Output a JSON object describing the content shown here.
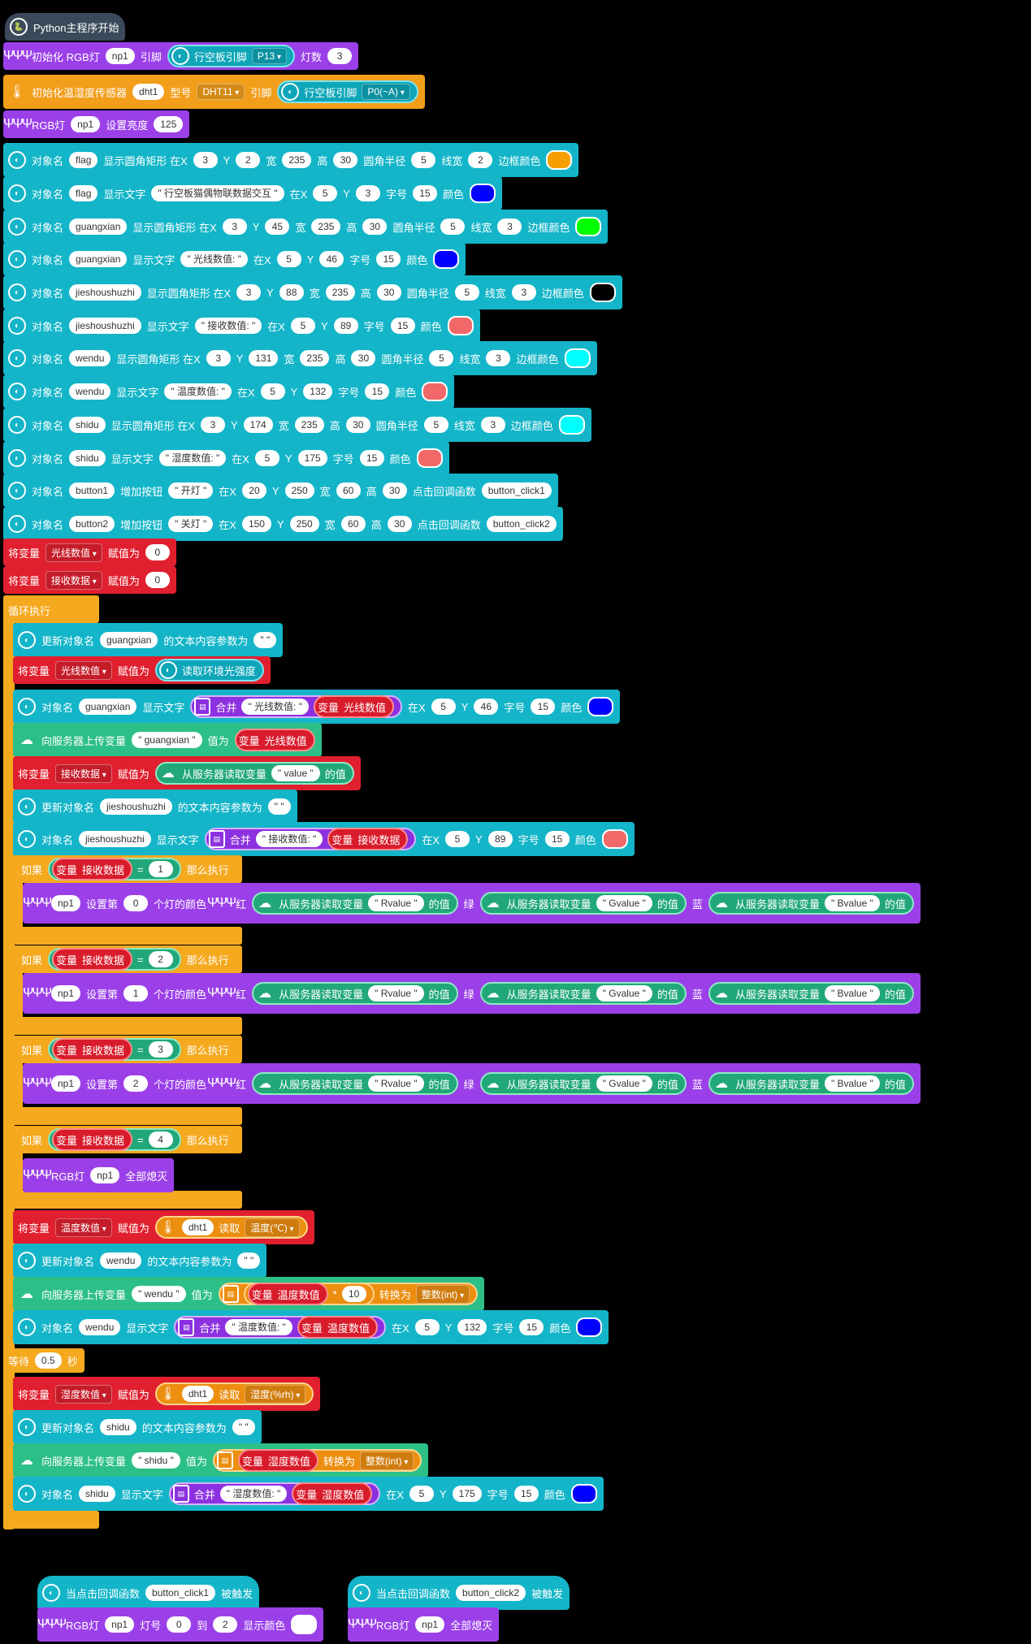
{
  "hat_main": {
    "label": "Python主程序开始"
  },
  "init_rgb": {
    "label": "初始化 RGB灯",
    "var": "np1",
    "pin_label": "引脚",
    "board_label": "行空板引脚",
    "pin": "P13",
    "count_label": "灯数",
    "count": "3"
  },
  "init_dht": {
    "label": "初始化温湿度传感器",
    "var": "dht1",
    "type_label": "型号",
    "type": "DHT11",
    "pin_label": "引脚",
    "board_label": "行空板引脚",
    "pin": "P0(~A)"
  },
  "rgb_bright": {
    "label": "RGB灯",
    "var": "np1",
    "set_label": "设置亮度",
    "value": "125"
  },
  "objects": [
    {
      "pre": "对象名",
      "name": "flag",
      "action": "显示圆角矩形 在X",
      "x": "3",
      "y": "2",
      "w": "235",
      "h": "30",
      "r": "5",
      "lw": "2",
      "colorlabel": "边框颜色",
      "color": "#f5a000",
      "kind": "rect"
    },
    {
      "pre": "对象名",
      "name": "flag",
      "action": "显示文字",
      "text": "\" 行空板猫偶物联数据交互 \"",
      "x": "5",
      "y": "3",
      "size": "15",
      "colorlabel": "颜色",
      "color": "#0000ff",
      "kind": "text"
    },
    {
      "pre": "对象名",
      "name": "guangxian",
      "action": "显示圆角矩形 在X",
      "x": "3",
      "y": "45",
      "w": "235",
      "h": "30",
      "r": "5",
      "lw": "3",
      "colorlabel": "边框颜色",
      "color": "#00ff00",
      "kind": "rect"
    },
    {
      "pre": "对象名",
      "name": "guangxian",
      "action": "显示文字",
      "text": "\" 光线数值: \"",
      "x": "5",
      "y": "46",
      "size": "15",
      "colorlabel": "颜色",
      "color": "#0000ff",
      "kind": "text"
    },
    {
      "pre": "对象名",
      "name": "jieshoushuzhi",
      "action": "显示圆角矩形 在X",
      "x": "3",
      "y": "88",
      "w": "235",
      "h": "30",
      "r": "5",
      "lw": "3",
      "colorlabel": "边框颜色",
      "color": "#000000",
      "kind": "rect"
    },
    {
      "pre": "对象名",
      "name": "jieshoushuzhi",
      "action": "显示文字",
      "text": "\" 接收数值: \"",
      "x": "5",
      "y": "89",
      "size": "15",
      "colorlabel": "颜色",
      "color": "#f06868",
      "kind": "text"
    },
    {
      "pre": "对象名",
      "name": "wendu",
      "action": "显示圆角矩形 在X",
      "x": "3",
      "y": "131",
      "w": "235",
      "h": "30",
      "r": "5",
      "lw": "3",
      "colorlabel": "边框颜色",
      "color": "#00ffff",
      "kind": "rect"
    },
    {
      "pre": "对象名",
      "name": "wendu",
      "action": "显示文字",
      "text": "\" 温度数值: \"",
      "x": "5",
      "y": "132",
      "size": "15",
      "colorlabel": "颜色",
      "color": "#f06868",
      "kind": "text"
    },
    {
      "pre": "对象名",
      "name": "shidu",
      "action": "显示圆角矩形 在X",
      "x": "3",
      "y": "174",
      "w": "235",
      "h": "30",
      "r": "5",
      "lw": "3",
      "colorlabel": "边框颜色",
      "color": "#00ffff",
      "kind": "rect"
    },
    {
      "pre": "对象名",
      "name": "shidu",
      "action": "显示文字",
      "text": "\" 湿度数值: \"",
      "x": "5",
      "y": "175",
      "size": "15",
      "colorlabel": "颜色",
      "color": "#f06868",
      "kind": "text"
    }
  ],
  "buttons": [
    {
      "pre": "对象名",
      "name": "button1",
      "action": "增加按钮",
      "text": "\" 开灯 \"",
      "x": "20",
      "y": "250",
      "w": "60",
      "h": "30",
      "cb_label": "点击回调函数",
      "cb": "button_click1"
    },
    {
      "pre": "对象名",
      "name": "button2",
      "action": "增加按钮",
      "text": "\" 关灯 \"",
      "x": "150",
      "y": "250",
      "w": "60",
      "h": "30",
      "cb_label": "点击回调函数",
      "cb": "button_click2"
    }
  ],
  "set_vars": [
    {
      "pre": "将变量",
      "var": "光线数值",
      "assign": "赋值为",
      "value": "0"
    },
    {
      "pre": "将变量",
      "var": "接收数据",
      "assign": "赋值为",
      "value": "0"
    }
  ],
  "loop_label": "循环执行",
  "common": {
    "x_label": "在X",
    "y_label": "Y",
    "w_label": "宽",
    "h_label": "高",
    "r_label": "圆角半径",
    "lw_label": "线宽",
    "size_label": "字号",
    "set_var": "将变量",
    "assign": "赋值为",
    "var_word": "变量",
    "merge": "合并",
    "upload": "向服务器上传变量",
    "value_word": "值为",
    "read_server": "从服务器读取变量",
    "of_value": "的值",
    "update_obj": "更新对象名",
    "update_text": "的文本内容参数为",
    "empty_str": "\" \"",
    "if_label": "如果",
    "then_label": "那么执行",
    "eq": "=",
    "set_nth": "设置第",
    "nth_color": "个灯的颜色",
    "red": "红",
    "green": "绿",
    "blue": "蓝",
    "rgb": "RGB灯",
    "all_off": "全部熄灭",
    "read": "读取",
    "convert": "转换为",
    "int": "整数(int)",
    "wait": "等待",
    "sec": "秒",
    "times": "*",
    "show_text": "显示文字",
    "obj_name": "对象名",
    "color_label": "颜色"
  },
  "loop": {
    "update_gx": {
      "obj": "guangxian"
    },
    "set_light": {
      "var": "光线数值",
      "reader": "读取环境光强度"
    },
    "show_gx": {
      "obj": "guangxian",
      "text": "\" 光线数值: \"",
      "var": "光线数值",
      "x": "5",
      "y": "46",
      "size": "15",
      "color": "#0000ff"
    },
    "upload_gx": {
      "name": "\" guangxian \"",
      "var": "光线数值"
    },
    "set_recv": {
      "var": "接收数据",
      "name": "\" value \""
    },
    "update_js": {
      "obj": "jieshoushuzhi"
    },
    "show_js": {
      "obj": "jieshoushuzhi",
      "text": "\" 接收数值: \"",
      "var": "接收数据",
      "x": "5",
      "y": "89",
      "size": "15",
      "color": "#f06868"
    },
    "ifs": [
      {
        "var": "接收数据",
        "val": "1",
        "lamp": "np1",
        "idx": "0",
        "r": "\" Rvalue \"",
        "g": "\" Gvalue \"",
        "b": "\" Bvalue \""
      },
      {
        "var": "接收数据",
        "val": "2",
        "lamp": "np1",
        "idx": "1",
        "r": "\" Rvalue \"",
        "g": "\" Gvalue \"",
        "b": "\" Bvalue \""
      },
      {
        "var": "接收数据",
        "val": "3",
        "lamp": "np1",
        "idx": "2",
        "r": "\" Rvalue \"",
        "g": "\" Gvalue \"",
        "b": "\" Bvalue \""
      }
    ],
    "if4": {
      "var": "接收数据",
      "val": "4",
      "lamp": "np1"
    },
    "set_temp": {
      "var": "温度数值",
      "dev": "dht1",
      "what": "温度(℃)"
    },
    "update_wd": {
      "obj": "wendu"
    },
    "upload_wd": {
      "name": "\" wendu \"",
      "var": "温度数值",
      "mul": "10"
    },
    "show_wd": {
      "obj": "wendu",
      "text": "\" 温度数值: \"",
      "var": "温度数值",
      "x": "5",
      "y": "132",
      "size": "15",
      "color": "#0000ff"
    },
    "wait": {
      "val": "0.5"
    },
    "set_hum": {
      "var": "湿度数值",
      "dev": "dht1",
      "what": "湿度(%rh)"
    },
    "update_sd": {
      "obj": "shidu"
    },
    "upload_sd": {
      "name": "\" shidu \"",
      "var": "湿度数值"
    },
    "show_sd": {
      "obj": "shidu",
      "text": "\" 湿度数值: \"",
      "var": "湿度数值",
      "x": "5",
      "y": "175",
      "size": "15",
      "color": "#0000ff"
    }
  },
  "cb1": {
    "hat": "当点击回调函数",
    "fn": "button_click1",
    "fired": "被触发",
    "rgb": "RGB灯",
    "lamp": "np1",
    "num_label": "灯号",
    "from": "0",
    "to_label": "到",
    "to": "2",
    "show": "显示颜色",
    "color": "#ffffff"
  },
  "cb2": {
    "hat": "当点击回调函数",
    "fn": "button_click2",
    "fired": "被触发",
    "rgb": "RGB灯",
    "lamp": "np1",
    "off": "全部熄灭"
  }
}
